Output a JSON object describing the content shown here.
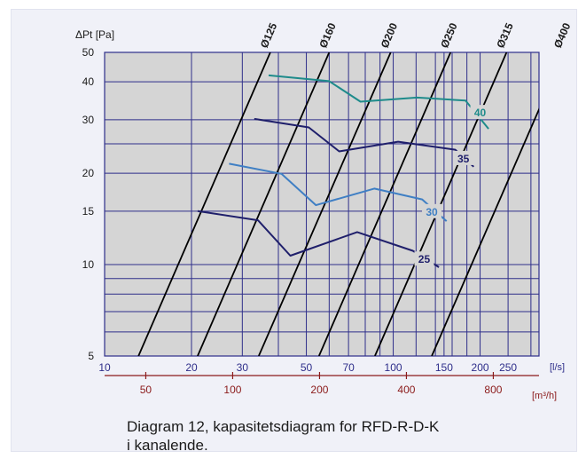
{
  "caption": {
    "line1": "Diagram 12, kapasitetsdiagram for RFD-R-D-K",
    "line2": "i kanalende."
  },
  "chart_data": {
    "type": "line",
    "title": "",
    "ylabel": "ΔPt [Pa]",
    "xlabel": "[l/s]",
    "x2label": "[m³/h]",
    "x_scale": "log",
    "y_scale": "log",
    "xlim": [
      10,
      320
    ],
    "ylim": [
      5,
      50
    ],
    "grid": true,
    "plot_background": "#d5d5d5",
    "colors": {
      "grid": "#2e2e8a",
      "axis_text": "#2e2e8a",
      "secondary_axis": "#8b1a1a",
      "diameter_lines": "#000000",
      "curve_25": "#1f1f6b",
      "curve_30": "#3f7fc4",
      "curve_35": "#1f1f6b",
      "curve_40": "#1e8b8b"
    },
    "y_ticks": [
      5,
      10,
      15,
      20,
      30,
      40,
      50
    ],
    "y_grid_extra": [
      6,
      7,
      8,
      9,
      25
    ],
    "x_ticks": [
      10,
      20,
      30,
      50,
      70,
      100,
      150,
      200,
      250
    ],
    "x_tick_labels": [
      "10",
      "20",
      "30",
      "50",
      "70",
      "100",
      "150",
      "200",
      "250"
    ],
    "x_grid_extra": [
      40,
      60,
      80,
      90,
      120,
      140,
      160,
      180,
      300
    ],
    "x2_ticks": [
      50,
      100,
      200,
      400,
      800
    ],
    "x2_tick_labels": [
      "50",
      "100",
      "200",
      "400",
      "800"
    ],
    "diameter_lines": [
      {
        "label": "Ø125",
        "x_at_5": 13.1,
        "x_at_50": 37.5
      },
      {
        "label": "Ø160",
        "x_at_5": 21.0,
        "x_at_50": 60
      },
      {
        "label": "Ø200",
        "x_at_5": 34.2,
        "x_at_50": 98
      },
      {
        "label": "Ø250",
        "x_at_5": 55.3,
        "x_at_50": 158
      },
      {
        "label": "Ø315",
        "x_at_5": 86.4,
        "x_at_50": 247
      },
      {
        "label": "Ø400",
        "x_at_5": 136,
        "x_at_50": 390
      }
    ],
    "series": [
      {
        "name": "25",
        "color_key": "curve_25",
        "points": [
          [
            21,
            15
          ],
          [
            34,
            14
          ],
          [
            44,
            10.7
          ],
          [
            75,
            12.8
          ],
          [
            117,
            11.1
          ],
          [
            144,
            9.8
          ]
        ],
        "label_at": [
          128,
          10.4
        ]
      },
      {
        "name": "30",
        "color_key": "curve_30",
        "points": [
          [
            27,
            21.5
          ],
          [
            41,
            19.9
          ],
          [
            54,
            15.7
          ],
          [
            86,
            17.8
          ],
          [
            126,
            16.4
          ],
          [
            153,
            13.9
          ]
        ],
        "label_at": [
          136,
          14.9
        ]
      },
      {
        "name": "35",
        "color_key": "curve_35",
        "points": [
          [
            33,
            30.2
          ],
          [
            51,
            28.3
          ],
          [
            65,
            23.6
          ],
          [
            104,
            25.4
          ],
          [
            164,
            23.9
          ],
          [
            190,
            21.0
          ]
        ],
        "label_at": [
          175,
          22.3
        ]
      },
      {
        "name": "40",
        "color_key": "curve_40",
        "points": [
          [
            37,
            42
          ],
          [
            60,
            40.2
          ],
          [
            77,
            34.4
          ],
          [
            121,
            35.5
          ],
          [
            178,
            34.7
          ],
          [
            214,
            28
          ]
        ],
        "label_at": [
          200,
          31.6
        ]
      }
    ]
  }
}
